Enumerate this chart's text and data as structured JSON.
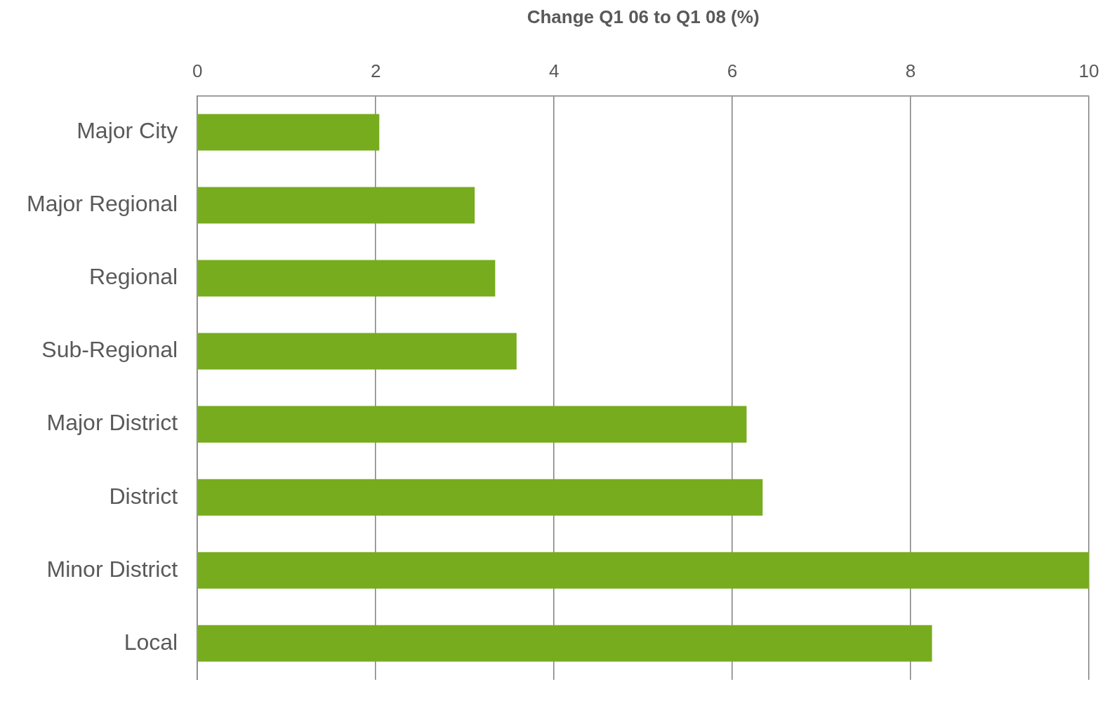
{
  "chart_data": {
    "type": "bar",
    "orientation": "horizontal",
    "xlabel": "Change Q1 06 to Q1 08 (%)",
    "categories": [
      "Major City",
      "Major Regional",
      "Regional",
      "Sub-Regional",
      "Major District",
      "District",
      "Minor District",
      "Local"
    ],
    "values": [
      2.04,
      3.11,
      3.34,
      3.58,
      6.16,
      6.34,
      10.0,
      8.24
    ],
    "color": "#76ac1e",
    "xlim": [
      0,
      10
    ],
    "xticks": [
      0,
      2,
      4,
      6,
      8,
      10
    ],
    "grid": "x",
    "legend": false
  }
}
